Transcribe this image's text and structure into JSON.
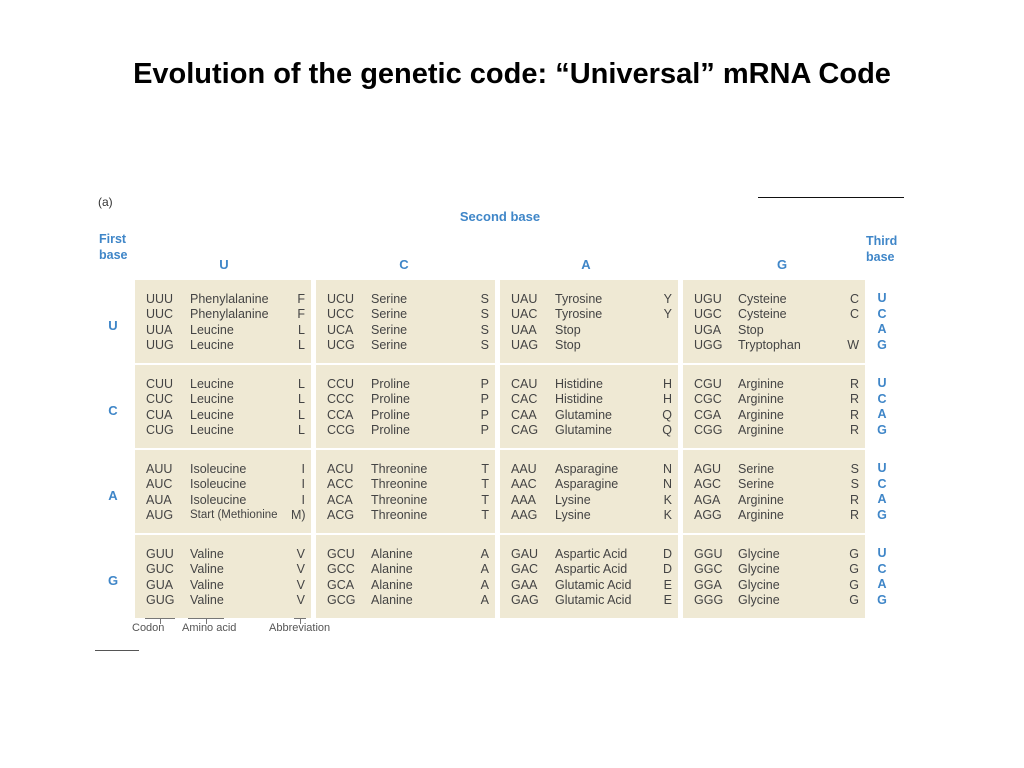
{
  "slide": {
    "title": "Evolution of the genetic code: “Universal” mRNA Code"
  },
  "table": {
    "panel_label": "(a)",
    "second_base_label": "Second base",
    "first_base_label": [
      "First",
      "base"
    ],
    "third_base_label": [
      "Third",
      "base"
    ],
    "column_bases": [
      "U",
      "C",
      "A",
      "G"
    ],
    "row_bases": [
      "U",
      "C",
      "A",
      "G"
    ],
    "third_base_letters": [
      "U",
      "C",
      "A",
      "G"
    ],
    "blocks": [
      [
        [
          [
            "UUU",
            "Phenylalanine",
            "F"
          ],
          [
            "UUC",
            "Phenylalanine",
            "F"
          ],
          [
            "UUA",
            "Leucine",
            "L"
          ],
          [
            "UUG",
            "Leucine",
            "L"
          ]
        ],
        [
          [
            "UCU",
            "Serine",
            "S"
          ],
          [
            "UCC",
            "Serine",
            "S"
          ],
          [
            "UCA",
            "Serine",
            "S"
          ],
          [
            "UCG",
            "Serine",
            "S"
          ]
        ],
        [
          [
            "UAU",
            "Tyrosine",
            "Y"
          ],
          [
            "UAC",
            "Tyrosine",
            "Y"
          ],
          [
            "UAA",
            "Stop",
            ""
          ],
          [
            "UAG",
            "Stop",
            ""
          ]
        ],
        [
          [
            "UGU",
            "Cysteine",
            "C"
          ],
          [
            "UGC",
            "Cysteine",
            "C"
          ],
          [
            "UGA",
            "Stop",
            ""
          ],
          [
            "UGG",
            "Tryptophan",
            "W"
          ]
        ]
      ],
      [
        [
          [
            "CUU",
            "Leucine",
            "L"
          ],
          [
            "CUC",
            "Leucine",
            "L"
          ],
          [
            "CUA",
            "Leucine",
            "L"
          ],
          [
            "CUG",
            "Leucine",
            "L"
          ]
        ],
        [
          [
            "CCU",
            "Proline",
            "P"
          ],
          [
            "CCC",
            "Proline",
            "P"
          ],
          [
            "CCA",
            "Proline",
            "P"
          ],
          [
            "CCG",
            "Proline",
            "P"
          ]
        ],
        [
          [
            "CAU",
            "Histidine",
            "H"
          ],
          [
            "CAC",
            "Histidine",
            "H"
          ],
          [
            "CAA",
            "Glutamine",
            "Q"
          ],
          [
            "CAG",
            "Glutamine",
            "Q"
          ]
        ],
        [
          [
            "CGU",
            "Arginine",
            "R"
          ],
          [
            "CGC",
            "Arginine",
            "R"
          ],
          [
            "CGA",
            "Arginine",
            "R"
          ],
          [
            "CGG",
            "Arginine",
            "R"
          ]
        ]
      ],
      [
        [
          [
            "AUU",
            "Isoleucine",
            "I"
          ],
          [
            "AUC",
            "Isoleucine",
            "I"
          ],
          [
            "AUA",
            "Isoleucine",
            "I"
          ],
          [
            "AUG",
            "Start (Methionine",
            "M)"
          ]
        ],
        [
          [
            "ACU",
            "Threonine",
            "T"
          ],
          [
            "ACC",
            "Threonine",
            "T"
          ],
          [
            "ACA",
            "Threonine",
            "T"
          ],
          [
            "ACG",
            "Threonine",
            "T"
          ]
        ],
        [
          [
            "AAU",
            "Asparagine",
            "N"
          ],
          [
            "AAC",
            "Asparagine",
            "N"
          ],
          [
            "AAA",
            "Lysine",
            "K"
          ],
          [
            "AAG",
            "Lysine",
            "K"
          ]
        ],
        [
          [
            "AGU",
            "Serine",
            "S"
          ],
          [
            "AGC",
            "Serine",
            "S"
          ],
          [
            "AGA",
            "Arginine",
            "R"
          ],
          [
            "AGG",
            "Arginine",
            "R"
          ]
        ]
      ],
      [
        [
          [
            "GUU",
            "Valine",
            "V"
          ],
          [
            "GUC",
            "Valine",
            "V"
          ],
          [
            "GUA",
            "Valine",
            "V"
          ],
          [
            "GUG",
            "Valine",
            "V"
          ]
        ],
        [
          [
            "GCU",
            "Alanine",
            "A"
          ],
          [
            "GCC",
            "Alanine",
            "A"
          ],
          [
            "GCA",
            "Alanine",
            "A"
          ],
          [
            "GCG",
            "Alanine",
            "A"
          ]
        ],
        [
          [
            "GAU",
            "Aspartic Acid",
            "D"
          ],
          [
            "GAC",
            "Aspartic Acid",
            "D"
          ],
          [
            "GAA",
            "Glutamic Acid",
            "E"
          ],
          [
            "GAG",
            "Glutamic Acid",
            "E"
          ]
        ],
        [
          [
            "GGU",
            "Glycine",
            "G"
          ],
          [
            "GGC",
            "Glycine",
            "G"
          ],
          [
            "GGA",
            "Glycine",
            "G"
          ],
          [
            "GGG",
            "Glycine",
            "G"
          ]
        ]
      ]
    ],
    "legend": {
      "codon": "Codon",
      "amino_acid": "Amino acid",
      "abbreviation": "Abbreviation"
    },
    "colors": {
      "accent_blue": "#3f86c8",
      "block_fill": "#efe9d4"
    }
  }
}
